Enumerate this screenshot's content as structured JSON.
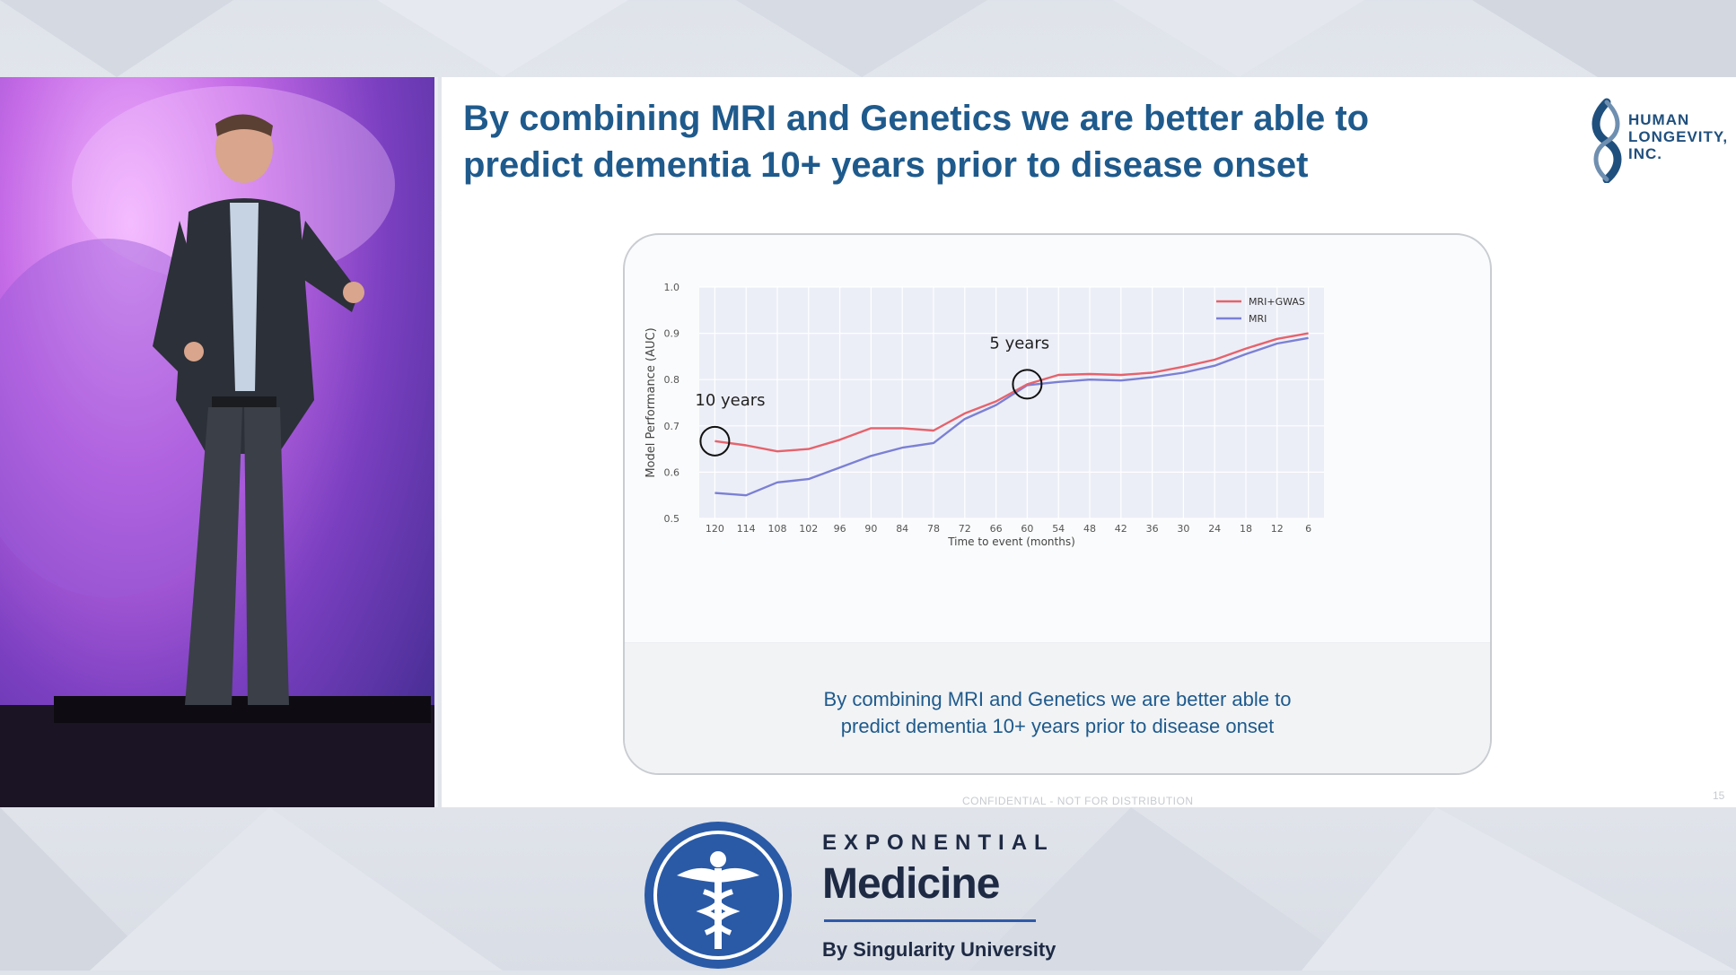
{
  "slide": {
    "title_line1": "By combining MRI and Genetics we are better able to",
    "title_line2": "predict dementia 10+ years prior to disease onset",
    "logo_line1": "HUMAN",
    "logo_line2": "LONGEVITY,",
    "logo_line3": "INC.",
    "caption_line1": "By combining MRI and Genetics we are better able to",
    "caption_line2": "predict dementia 10+ years prior to disease onset",
    "confidential": "CONFIDENTIAL - NOT FOR DISTRIBUTION",
    "page_number": "15"
  },
  "brand": {
    "line1": "EXPONENTIAL",
    "line2": "Medicine",
    "line3": "By Singularity University"
  },
  "colors": {
    "mri_gwas": "#e5636c",
    "mri": "#7b80d4",
    "plot_bg": "#eceef7",
    "title": "#1f5a8c"
  },
  "chart_data": {
    "type": "line",
    "xlabel": "Time to event (months)",
    "ylabel": "Model Performance (AUC)",
    "categories": [
      "120",
      "114",
      "108",
      "102",
      "96",
      "90",
      "84",
      "78",
      "72",
      "66",
      "60",
      "54",
      "48",
      "42",
      "36",
      "30",
      "24",
      "18",
      "12",
      "6"
    ],
    "ylim": [
      0.5,
      1.0
    ],
    "yticks": [
      "0.5",
      "0.6",
      "0.7",
      "0.8",
      "0.9",
      "1.0"
    ],
    "grid": true,
    "legend": "top-right",
    "series": [
      {
        "name": "MRI+GWAS",
        "color": "#e5636c",
        "values": [
          0.667,
          0.658,
          0.645,
          0.65,
          0.67,
          0.695,
          0.695,
          0.69,
          0.727,
          0.753,
          0.79,
          0.81,
          0.812,
          0.81,
          0.815,
          0.828,
          0.843,
          0.867,
          0.888,
          0.9
        ]
      },
      {
        "name": "MRI",
        "color": "#7b80d4",
        "values": [
          0.555,
          0.55,
          0.578,
          0.585,
          0.61,
          0.635,
          0.653,
          0.663,
          0.715,
          0.745,
          0.788,
          0.795,
          0.8,
          0.798,
          0.805,
          0.815,
          0.83,
          0.855,
          0.878,
          0.89
        ]
      }
    ],
    "annotations": [
      {
        "label": "10 years",
        "category": "120",
        "value": 0.667
      },
      {
        "label": "5 years",
        "category": "60",
        "value": 0.79
      }
    ]
  }
}
